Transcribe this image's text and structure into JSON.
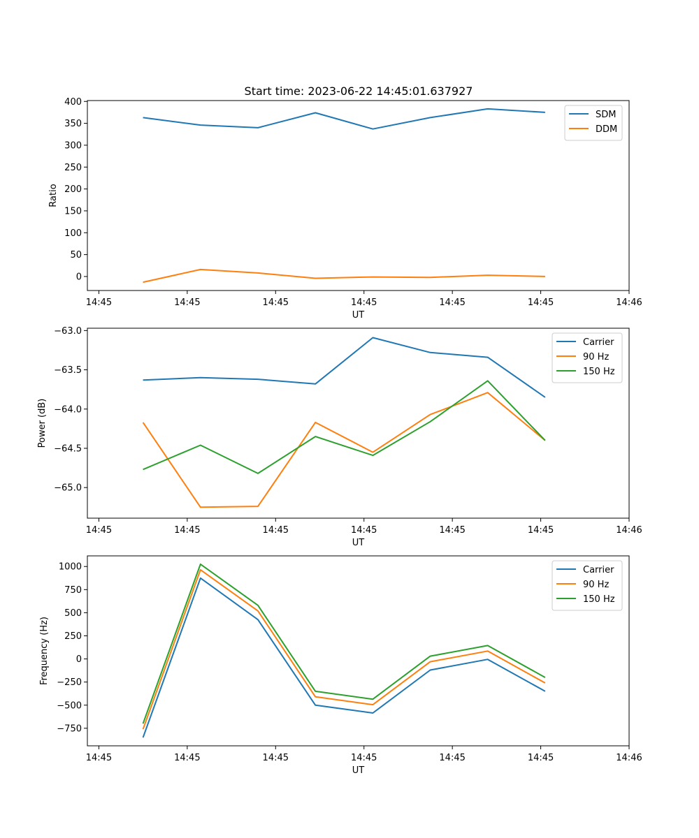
{
  "figure_title": "Start time: 2023-06-22 14:45:01.637927",
  "colors": {
    "blue": "#1f77b4",
    "orange": "#ff7f0e",
    "green": "#2ca02c"
  },
  "chart_data": [
    {
      "type": "line",
      "title": "Start time: 2023-06-22 14:45:01.637927",
      "xlabel": "UT",
      "ylabel": "Ratio",
      "x_tick_labels": [
        "14:45",
        "14:45",
        "14:45",
        "14:45",
        "14:45",
        "14:45",
        "14:46"
      ],
      "x_tick_seconds": [
        0,
        1,
        2,
        3,
        4,
        5,
        6
      ],
      "y_ticks": [
        0,
        50,
        100,
        150,
        200,
        250,
        300,
        350,
        400
      ],
      "xlim": [
        -0.13,
        6.0
      ],
      "ylim": [
        -32,
        402
      ],
      "legend_location": "upper right",
      "x": [
        0.5,
        1.15,
        1.8,
        2.45,
        3.1,
        3.75,
        4.4,
        5.05
      ],
      "series": [
        {
          "name": "SDM",
          "color": "#1f77b4",
          "values": [
            363,
            346,
            340,
            374,
            337,
            363,
            383,
            375
          ]
        },
        {
          "name": "DDM",
          "color": "#ff7f0e",
          "values": [
            -13,
            16,
            8,
            -4,
            -1,
            -2,
            3,
            0
          ]
        }
      ]
    },
    {
      "type": "line",
      "xlabel": "UT",
      "ylabel": "Power (dB)",
      "x_tick_labels": [
        "14:45",
        "14:45",
        "14:45",
        "14:45",
        "14:45",
        "14:45",
        "14:46"
      ],
      "x_tick_seconds": [
        0,
        1,
        2,
        3,
        4,
        5,
        6
      ],
      "y_ticks": [
        -65.0,
        -64.5,
        -64.0,
        -63.5,
        -63.0
      ],
      "y_tick_labels": [
        "−65.0",
        "−64.5",
        "−64.0",
        "−63.5",
        "−63.0"
      ],
      "xlim": [
        -0.13,
        6.0
      ],
      "ylim": [
        -65.39,
        -62.97
      ],
      "legend_location": "upper right",
      "x": [
        0.5,
        1.15,
        1.8,
        2.45,
        3.1,
        3.75,
        4.4,
        5.05
      ],
      "series": [
        {
          "name": "Carrier",
          "color": "#1f77b4",
          "values": [
            -63.63,
            -63.6,
            -63.62,
            -63.68,
            -63.09,
            -63.28,
            -63.34,
            -63.85
          ]
        },
        {
          "name": "90 Hz",
          "color": "#ff7f0e",
          "values": [
            -64.17,
            -65.25,
            -65.24,
            -64.17,
            -64.55,
            -64.07,
            -63.79,
            -64.4
          ]
        },
        {
          "name": "150 Hz",
          "color": "#2ca02c",
          "values": [
            -64.77,
            -64.46,
            -64.82,
            -64.35,
            -64.59,
            -64.16,
            -63.64,
            -64.4
          ]
        }
      ]
    },
    {
      "type": "line",
      "xlabel": "UT",
      "ylabel": "Frequency (Hz)",
      "x_tick_labels": [
        "14:45",
        "14:45",
        "14:45",
        "14:45",
        "14:45",
        "14:45",
        "14:46"
      ],
      "x_tick_seconds": [
        0,
        1,
        2,
        3,
        4,
        5,
        6
      ],
      "y_ticks": [
        -750,
        -500,
        -250,
        0,
        250,
        500,
        750,
        1000
      ],
      "y_tick_labels": [
        "−750",
        "−500",
        "−250",
        "0",
        "250",
        "500",
        "750",
        "1000"
      ],
      "xlim": [
        -0.13,
        6.0
      ],
      "ylim": [
        -940,
        1115
      ],
      "legend_location": "upper right",
      "x": [
        0.5,
        1.15,
        1.8,
        2.45,
        3.1,
        3.75,
        4.4,
        5.05
      ],
      "series": [
        {
          "name": "Carrier",
          "color": "#1f77b4",
          "values": [
            -850,
            875,
            425,
            -500,
            -585,
            -120,
            -5,
            -350
          ]
        },
        {
          "name": "90 Hz",
          "color": "#ff7f0e",
          "values": [
            -760,
            965,
            520,
            -410,
            -495,
            -30,
            85,
            -260
          ]
        },
        {
          "name": "150 Hz",
          "color": "#2ca02c",
          "values": [
            -700,
            1025,
            580,
            -350,
            -435,
            30,
            145,
            -200
          ]
        }
      ]
    }
  ]
}
